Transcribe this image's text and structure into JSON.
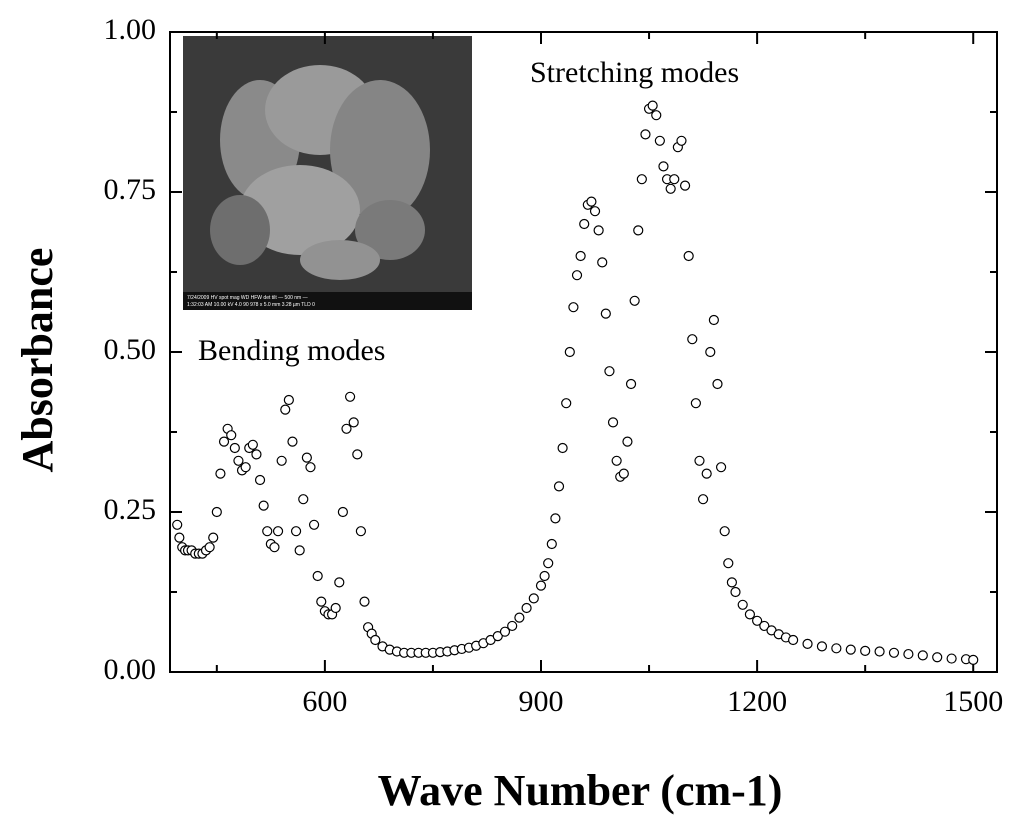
{
  "chart_data": {
    "type": "scatter",
    "xlabel": "Wave Number (cm-1)",
    "ylabel": "Absorbance",
    "annotations": [
      "Stretching modes",
      "Bending modes"
    ],
    "inset_caption": [
      "7/24/2009  HV  spot  mag  WD  HFW  det  tilt  — 500 nm —",
      "1:32:03 AM 10.00 kV 4.0 90 978 x 5.0 mm 3.28 µm TLD 0"
    ],
    "color": "#000000",
    "xlim": [
      385,
      1533
    ],
    "ylim": [
      0,
      1
    ],
    "xticks": [
      600,
      900,
      1200,
      1500
    ],
    "xminorticks": [
      450,
      750,
      1050,
      1350
    ],
    "yticks": [
      {
        "value": 0,
        "label": "0.00"
      },
      {
        "value": 0.25,
        "label": "0.25"
      },
      {
        "value": 0.5,
        "label": "0.50"
      },
      {
        "value": 0.75,
        "label": "0.75"
      },
      {
        "value": 1,
        "label": "1.00"
      }
    ],
    "yminorticks": [
      0.125,
      0.375,
      0.625,
      0.875
    ],
    "x": [
      395,
      398,
      402,
      406,
      410,
      415,
      420,
      425,
      430,
      435,
      440,
      445,
      450,
      455,
      460,
      465,
      470,
      475,
      480,
      485,
      490,
      495,
      500,
      505,
      510,
      515,
      520,
      525,
      530,
      535,
      540,
      545,
      550,
      555,
      560,
      565,
      570,
      575,
      580,
      585,
      590,
      595,
      600,
      605,
      610,
      615,
      620,
      625,
      630,
      635,
      640,
      645,
      650,
      655,
      660,
      665,
      670,
      680,
      690,
      700,
      710,
      720,
      730,
      740,
      750,
      760,
      770,
      780,
      790,
      800,
      810,
      820,
      830,
      840,
      850,
      860,
      870,
      880,
      890,
      900,
      905,
      910,
      915,
      920,
      925,
      930,
      935,
      940,
      945,
      950,
      955,
      960,
      965,
      970,
      975,
      980,
      985,
      990,
      995,
      1000,
      1005,
      1010,
      1015,
      1020,
      1025,
      1030,
      1035,
      1040,
      1045,
      1050,
      1055,
      1060,
      1065,
      1070,
      1075,
      1080,
      1085,
      1090,
      1095,
      1100,
      1105,
      1110,
      1115,
      1120,
      1125,
      1130,
      1135,
      1140,
      1145,
      1150,
      1155,
      1160,
      1165,
      1170,
      1180,
      1190,
      1200,
      1210,
      1220,
      1230,
      1240,
      1250,
      1270,
      1290,
      1310,
      1330,
      1350,
      1370,
      1390,
      1410,
      1430,
      1450,
      1470,
      1490,
      1500
    ],
    "values": [
      0.23,
      0.21,
      0.195,
      0.19,
      0.19,
      0.19,
      0.185,
      0.185,
      0.185,
      0.19,
      0.195,
      0.21,
      0.25,
      0.31,
      0.36,
      0.38,
      0.37,
      0.35,
      0.33,
      0.315,
      0.32,
      0.35,
      0.355,
      0.34,
      0.3,
      0.26,
      0.22,
      0.2,
      0.195,
      0.22,
      0.33,
      0.41,
      0.425,
      0.36,
      0.22,
      0.19,
      0.27,
      0.335,
      0.32,
      0.23,
      0.15,
      0.11,
      0.095,
      0.09,
      0.09,
      0.1,
      0.14,
      0.25,
      0.38,
      0.43,
      0.39,
      0.34,
      0.22,
      0.11,
      0.07,
      0.06,
      0.05,
      0.04,
      0.035,
      0.032,
      0.03,
      0.03,
      0.03,
      0.03,
      0.03,
      0.031,
      0.032,
      0.034,
      0.036,
      0.038,
      0.041,
      0.045,
      0.05,
      0.056,
      0.063,
      0.072,
      0.085,
      0.1,
      0.115,
      0.135,
      0.15,
      0.17,
      0.2,
      0.24,
      0.29,
      0.35,
      0.42,
      0.5,
      0.57,
      0.62,
      0.65,
      0.7,
      0.73,
      0.735,
      0.72,
      0.69,
      0.64,
      0.56,
      0.47,
      0.39,
      0.33,
      0.305,
      0.31,
      0.36,
      0.45,
      0.58,
      0.69,
      0.77,
      0.84,
      0.88,
      0.885,
      0.87,
      0.83,
      0.79,
      0.77,
      0.755,
      0.77,
      0.82,
      0.83,
      0.76,
      0.65,
      0.52,
      0.42,
      0.33,
      0.27,
      0.31,
      0.5,
      0.55,
      0.45,
      0.32,
      0.22,
      0.17,
      0.14,
      0.125,
      0.105,
      0.09,
      0.08,
      0.072,
      0.065,
      0.059,
      0.054,
      0.05,
      0.044,
      0.04,
      0.037,
      0.035,
      0.033,
      0.032,
      0.03,
      0.028,
      0.026,
      0.023,
      0.021,
      0.02,
      0.019
    ]
  }
}
